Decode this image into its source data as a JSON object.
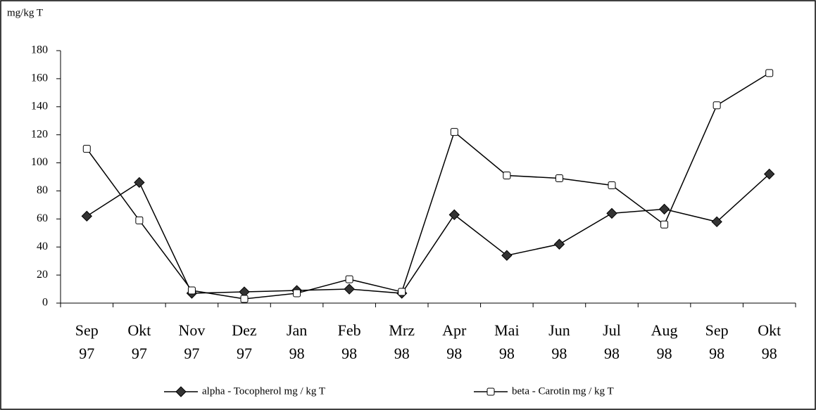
{
  "chart_data": {
    "type": "line",
    "ylabel": "mg/kg T",
    "categories": [
      [
        "Sep",
        "97"
      ],
      [
        "Okt",
        "97"
      ],
      [
        "Nov",
        "97"
      ],
      [
        "Dez",
        "97"
      ],
      [
        "Jan",
        "98"
      ],
      [
        "Feb",
        "98"
      ],
      [
        "Mrz",
        "98"
      ],
      [
        "Apr",
        "98"
      ],
      [
        "Mai",
        "98"
      ],
      [
        "Jun",
        "98"
      ],
      [
        "Jul",
        "98"
      ],
      [
        "Aug",
        "98"
      ],
      [
        "Sep",
        "98"
      ],
      [
        "Okt",
        "98"
      ]
    ],
    "series": [
      {
        "name": "alpha - Tocopherol mg / kg T",
        "color": "#333333",
        "marker": "diamond",
        "values": [
          62,
          86,
          7,
          8,
          9,
          10,
          7,
          63,
          34,
          42,
          64,
          67,
          58,
          92
        ]
      },
      {
        "name": "beta - Carotin mg / kg T",
        "color": "#ffffff",
        "marker": "square",
        "values": [
          110,
          59,
          9,
          3,
          7,
          17,
          8,
          122,
          91,
          89,
          84,
          56,
          141,
          164
        ]
      }
    ],
    "ylim": [
      0,
      180
    ],
    "yticks": [
      0,
      20,
      40,
      60,
      80,
      100,
      120,
      140,
      160,
      180
    ],
    "grid": false,
    "legend": "bottom"
  }
}
